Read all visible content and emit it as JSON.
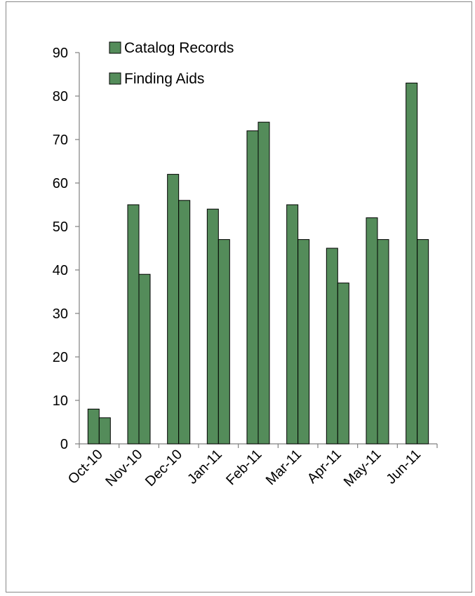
{
  "chart_data": {
    "type": "bar",
    "title": "",
    "xlabel": "",
    "ylabel": "",
    "categories": [
      "Oct-10",
      "Nov-10",
      "Dec-10",
      "Jan-11",
      "Feb-11",
      "Mar-11",
      "Apr-11",
      "May-11",
      "Jun-11"
    ],
    "series": [
      {
        "name": "Catalog Records",
        "values": [
          8,
          55,
          62,
          54,
          72,
          55,
          45,
          52,
          83
        ]
      },
      {
        "name": "Finding Aids",
        "values": [
          6,
          39,
          56,
          47,
          74,
          47,
          37,
          47,
          47
        ]
      }
    ],
    "ylim": [
      0,
      90
    ],
    "yticks": [
      0,
      10,
      20,
      30,
      40,
      50,
      60,
      70,
      80,
      90
    ],
    "grid": false,
    "legend_position": "top-left",
    "colors": {
      "bar_fill": "#548c5a",
      "bar_stroke": "#000000",
      "axis": "#808080",
      "frame": "#888888"
    }
  }
}
